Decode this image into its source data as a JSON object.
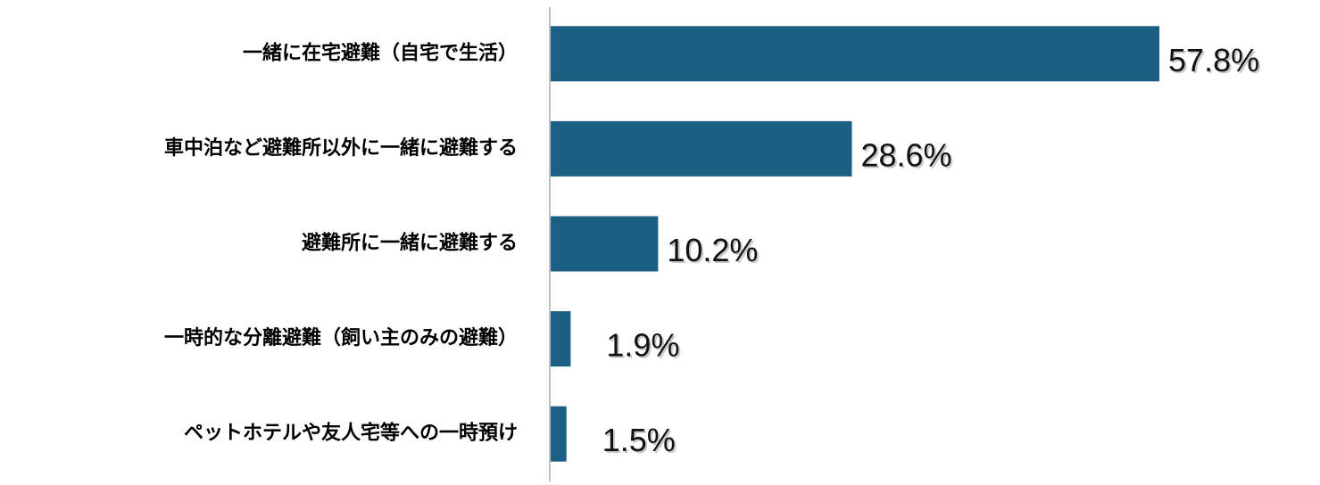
{
  "chart_data": {
    "type": "bar",
    "orientation": "horizontal",
    "categories": [
      "一緒に在宅避難（自宅で生活）",
      "車中泊など避難所以外に一緒に避難する",
      "避難所に一緒に避難する",
      "一時的な分離避難（飼い主のみの避難）",
      "ペットホテルや友人宅等への一時預け"
    ],
    "values": [
      57.8,
      28.6,
      10.2,
      1.9,
      1.5
    ],
    "value_labels": [
      "57.8%",
      "28.6%",
      "10.2%",
      "1.9%",
      "1.5%"
    ],
    "color": "#1b6083"
  }
}
